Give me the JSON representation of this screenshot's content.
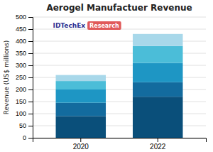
{
  "chart_data": {
    "type": "bar",
    "stacked": true,
    "title": "Aerogel Manufactuer Revenue",
    "ylabel": "Revenue (US$ millions)",
    "categories": [
      "2020",
      "2022"
    ],
    "series": [
      {
        "color": "#0a4f7a",
        "values": [
          90,
          170
        ]
      },
      {
        "color": "#136b9e",
        "values": [
          55,
          60
        ]
      },
      {
        "color": "#1e96c4",
        "values": [
          55,
          80
        ]
      },
      {
        "color": "#4bbdd8",
        "values": [
          35,
          70
        ]
      },
      {
        "color": "#a8d8ea",
        "values": [
          25,
          50
        ]
      }
    ],
    "ylim": [
      0,
      500
    ],
    "yticks": [
      0,
      50,
      100,
      150,
      200,
      250,
      300,
      350,
      400,
      450,
      500
    ],
    "grid": true,
    "annotations": [
      "IDTechEx",
      "Research"
    ]
  }
}
